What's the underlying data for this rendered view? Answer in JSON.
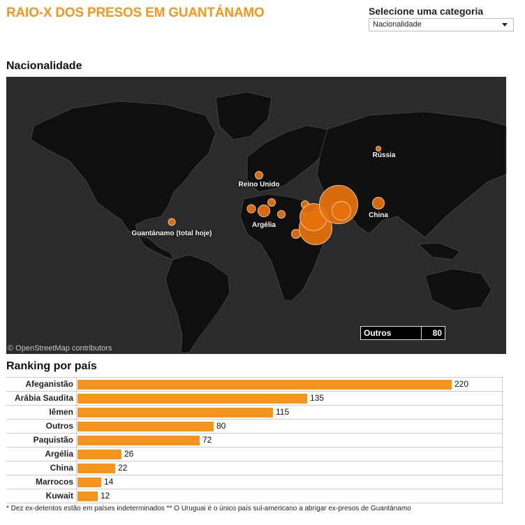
{
  "header": {
    "title": "RAIO-X DOS PRESOS EM GUANTÁNAMO",
    "selector_label": "Selecione uma categoria",
    "selector_value": "Nacionalidade"
  },
  "map_section": {
    "title": "Nacionalidade",
    "attribution": "© OpenStreetMap contributors",
    "outros_label": "Outros",
    "outros_value": "80",
    "labels": [
      "Rússia",
      "Reino Unido",
      "Argélia",
      "China",
      "Guantánamo (total hoje)"
    ]
  },
  "ranking_section": {
    "title": "Ranking por país"
  },
  "chart_data": {
    "type": "bar",
    "orientation": "horizontal",
    "categories": [
      "Afeganistão",
      "Arábia Saudita",
      "Iêmen",
      "Outros",
      "Paquistão",
      "Argélia",
      "China",
      "Marrocos",
      "Kuwait"
    ],
    "values": [
      220,
      135,
      115,
      80,
      72,
      26,
      22,
      14,
      12
    ],
    "bar_color": "#f7941d",
    "xlim": [
      0,
      250
    ],
    "grid": false,
    "data_labels": true
  },
  "footnote": "* Dez ex-detentos estão em países indeterminados ** O Uruguai é o único país sul-americano a abrigar ex-presos de Guantánamo",
  "colors": {
    "title": "#f7941d",
    "map_background": "#2b2b2b",
    "land": "#111111",
    "bubble": "#e8720c",
    "bar": "#f7941d"
  }
}
